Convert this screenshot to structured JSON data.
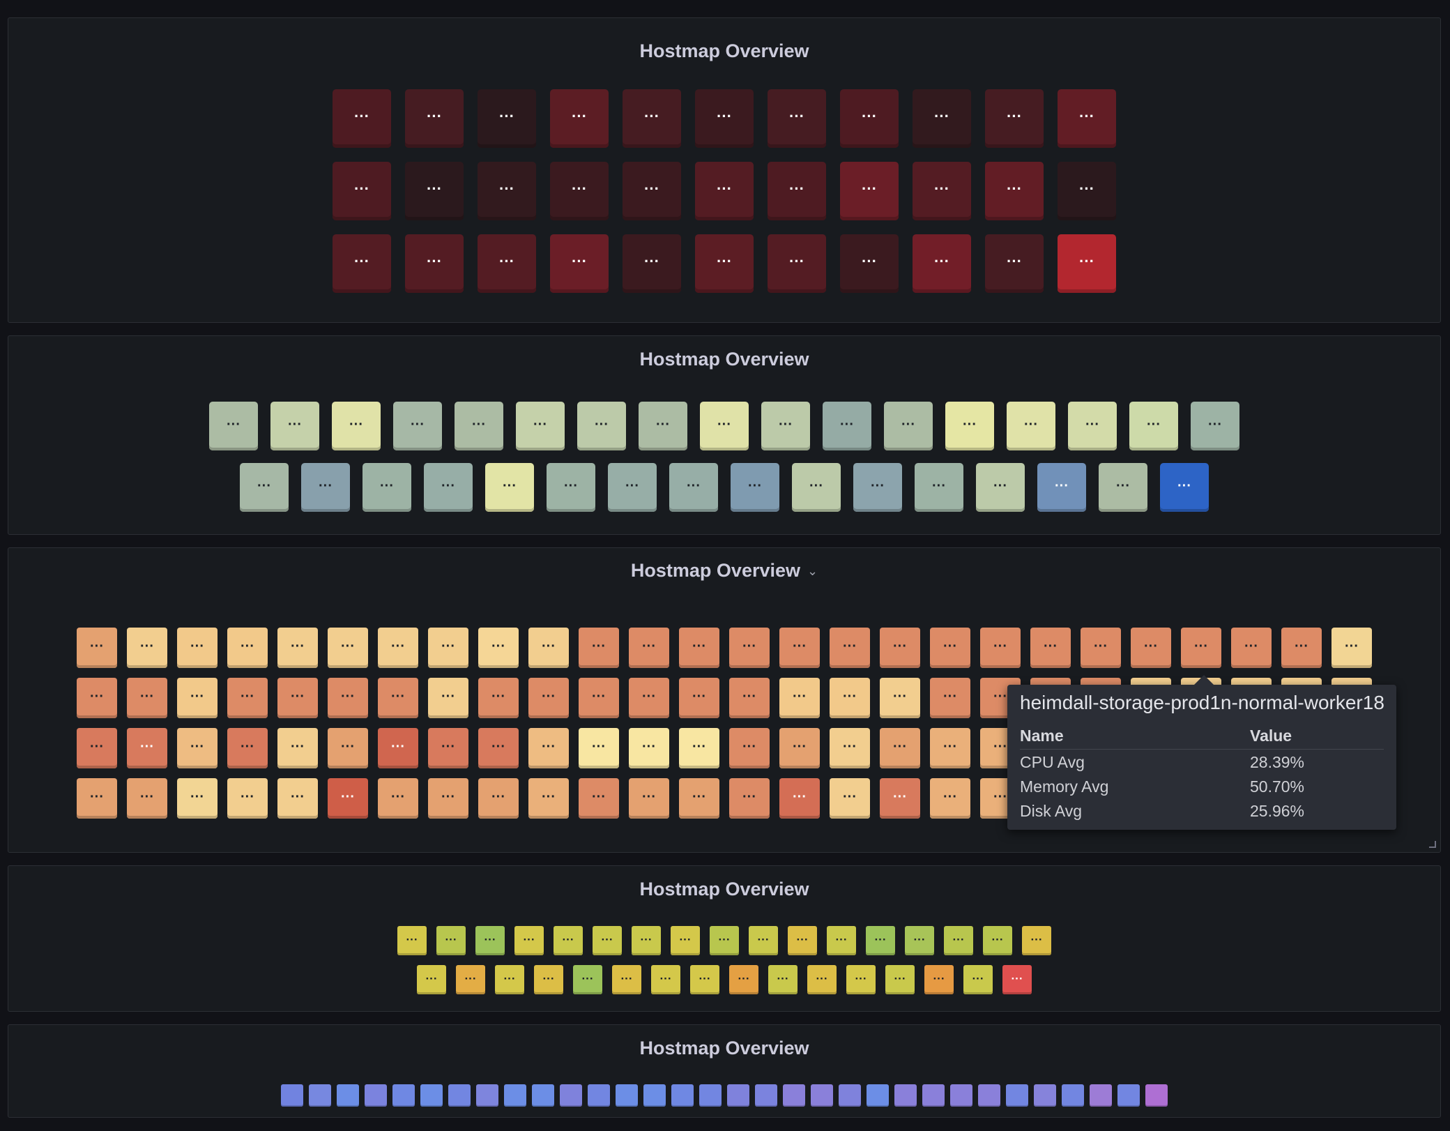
{
  "panels": [
    {
      "title": "Hostmap Overview",
      "cell_label": "···",
      "label_color": "#ffffff",
      "rows": [
        [
          "#4e1b22",
          "#461c22",
          "#2b191d",
          "#5c1d24",
          "#461c22",
          "#3b1a1f",
          "#461c22",
          "#4e1b22",
          "#321a1e",
          "#461c22",
          "#621d25"
        ],
        [
          "#4e1b22",
          "#2b191d",
          "#321a1e",
          "#3b1a1f",
          "#3b1a1f",
          "#541c23",
          "#4e1b22",
          "#6b1e27",
          "#541c23",
          "#621d25",
          "#2b191d"
        ],
        [
          "#541c23",
          "#541c23",
          "#541c23",
          "#6b1e27",
          "#3b1a1f",
          "#5c1d24",
          "#541c23",
          "#3b1a1f",
          "#721e28",
          "#461c22",
          "#b3272f"
        ]
      ]
    },
    {
      "title": "Hostmap Overview",
      "cell_label": "···",
      "label_color": "#1e2227",
      "accent_label_color": "#ffffff",
      "rows": [
        [
          "#acbca4",
          "#c5d1aa",
          "#e0e2a8",
          "#a6b8a6",
          "#acbca4",
          "#c5d1aa",
          "#bccaa9",
          "#acbca4",
          "#e0e2a8",
          "#bccaa9",
          "#95aba5",
          "#acbca4",
          "#e5e6a4",
          "#e0e2a8",
          "#d3dba9",
          "#cddaa9",
          "#9db3a5"
        ],
        [
          "#a6b8a6",
          "#88a0ac",
          "#9db3a5",
          "#97aea7",
          "#e2e4a6",
          "#9db3a5",
          "#97aea7",
          "#97aea7",
          "#7f9bb0",
          "#bccaa9",
          "#8ca4ad",
          "#9db3a5",
          "#bccaa9",
          "#7191b9",
          "#acbca4",
          "#2d64c6"
        ]
      ]
    },
    {
      "title": "Hostmap Overview",
      "cell_label": "···",
      "label_color": "#1e2227",
      "rows": [
        [
          "#e4a170",
          "#f2ce8f",
          "#f2c98a",
          "#f2c98a",
          "#f2ce8f",
          "#f2ce8f",
          "#f2ce8f",
          "#f2ce8f",
          "#f5d696",
          "#f2ce8f",
          "#dd8b66",
          "#dd8b66",
          "#dd8b66",
          "#dd8b66",
          "#dd8b66",
          "#dd8b66",
          "#dd8b66",
          "#dd8b66",
          "#dd8b66",
          "#dd8b66",
          "#dd8b66",
          "#dd8b66",
          "#dd8b66",
          "#dd8b66",
          "#dd8b66",
          "#f2d594"
        ],
        [
          "#dd8b66",
          "#dd8b66",
          "#f2c98a",
          "#dd8b66",
          "#dd8b66",
          "#dd8b66",
          "#dd8b66",
          "#f2ce8f",
          "#dd8b66",
          "#dd8b66",
          "#dd8b66",
          "#dd8b66",
          "#dd8b66",
          "#dd8b66",
          "#f2c98a",
          "#f2c98a",
          "#f2ce8f",
          "#dd8b66",
          "#dd8b66",
          "#dd8b66",
          "#dd8b66",
          "#f2ce8f",
          "#f2ce8f",
          "#f2ce8f",
          "#f2ce8f",
          "#f2ce8f"
        ],
        [
          "#d87a5d",
          "#d87a5d",
          "#eebc82",
          "#d87a5d",
          "#f2ce8f",
          "#e4a170",
          "#d0664f",
          "#d87a5d",
          "#d87a5d",
          "#eebc82",
          "#f8e6a2",
          "#f8e6a2",
          "#f8e6a2",
          "#dd8b66",
          "#e4a170",
          "#f2ce8f",
          "#e4a170",
          "#eab07a",
          "#eab07a",
          "#eab07a",
          "#eab07a",
          "#eab07a",
          "#eab07a",
          "#eab07a",
          "#eab07a",
          "#eab07a"
        ],
        [
          "#e4a170",
          "#e4a170",
          "#f2d594",
          "#f2ce8f",
          "#f2ce8f",
          "#cf5e48",
          "#e4a170",
          "#e4a170",
          "#e4a170",
          "#eab07a",
          "#dd8b66",
          "#e4a170",
          "#e4a170",
          "#dd8b66",
          "#d46e55",
          "#f2ce8f",
          "#d87a5d",
          "#eab07a",
          "#eab07a",
          "#eab07a",
          "#eab07a",
          "#eab07a",
          "#eab07a",
          "#eab07a",
          "#eab07a",
          "#eab07a"
        ]
      ],
      "white_label_cells": [
        [
          2,
          1
        ],
        [
          2,
          6
        ],
        [
          3,
          5
        ],
        [
          3,
          14
        ],
        [
          3,
          16
        ]
      ],
      "tooltip": {
        "title": "heimdall-storage-prod1n-normal-worker18",
        "col_name": "Name",
        "col_value": "Value",
        "rows": [
          {
            "name": "CPU Avg",
            "value": "28.39%"
          },
          {
            "name": "Memory Avg",
            "value": "50.70%"
          },
          {
            "name": "Disk Avg",
            "value": "25.96%"
          }
        ]
      }
    },
    {
      "title": "Hostmap Overview",
      "cell_label": "···",
      "label_color": "#1e2227",
      "rows": [
        [
          "#d4c84a",
          "#b8c64e",
          "#9cc35a",
          "#d4c84a",
          "#c9c94c",
          "#c9c94c",
          "#c9c94c",
          "#d4c84a",
          "#b8c64e",
          "#c9c94c",
          "#dcbe46",
          "#c9c94c",
          "#9cc35a",
          "#a8c458",
          "#b8c64e",
          "#b8c64e",
          "#dcbe46"
        ],
        [
          "#d4c84a",
          "#e3ad45",
          "#d4c84a",
          "#dcbe46",
          "#9cc35a",
          "#dcbe46",
          "#d4c84a",
          "#d4c84a",
          "#e4a043",
          "#c9c94c",
          "#dcbe46",
          "#d4c84a",
          "#c9c94c",
          "#e69a43",
          "#c9c94c",
          "#e0504f"
        ]
      ],
      "white_label_cells": [
        [
          1,
          15
        ]
      ]
    },
    {
      "title": "Hostmap Overview",
      "rows": [
        [
          "#7183e0",
          "#7788e0",
          "#6c8ee6",
          "#7b83de",
          "#6f88e3",
          "#6c8ee6",
          "#7286e1",
          "#7e85dd",
          "#6c8ee6",
          "#6c8ee6",
          "#7f82dc",
          "#7286e1",
          "#6c8ee6",
          "#6c8ee6",
          "#6f88e3",
          "#7286e1",
          "#7f82dc",
          "#7b83de",
          "#8a80da",
          "#8a80da",
          "#7f82dc",
          "#6c8ee6",
          "#8a80da",
          "#8a80da",
          "#8a80da",
          "#8a80da",
          "#7286e1",
          "#8683db",
          "#7286e1",
          "#9d7cd6",
          "#7286e1",
          "#ae6fd3"
        ]
      ]
    }
  ]
}
